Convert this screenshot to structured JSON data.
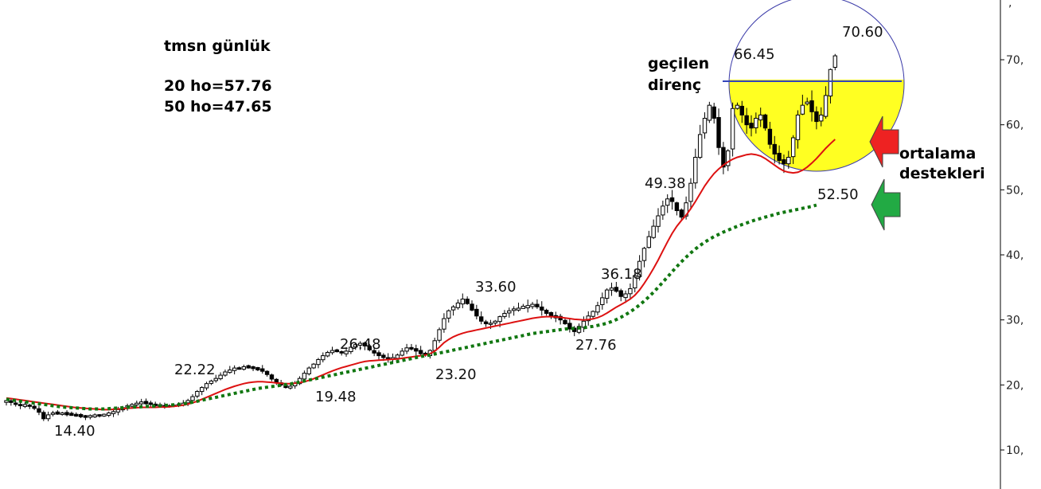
{
  "header": {
    "title": "tmsn günlük",
    "ma20": "20 ho=57.76",
    "ma50": "50 ho=47.65"
  },
  "notes": {
    "resistance": [
      "geçilen",
      "direnç"
    ],
    "support": [
      "ortalama",
      "destekleri"
    ]
  },
  "colors": {
    "ma20": "#dd1111",
    "ma50": "#117711",
    "resistance_line": "#3344bb",
    "circle_stroke": "#3a3aa8",
    "highlight_fill": "#ffff22",
    "arrow_red": "#ee2222",
    "arrow_green": "#22aa44",
    "candle_up": "#ffffff",
    "candle_down": "#000000",
    "axis_text": "#222222"
  },
  "chart_data": {
    "type": "candlestick",
    "title": "tmsn günlük",
    "ylim": [
      5,
      77
    ],
    "y_ticks": [
      10,
      20,
      30,
      40,
      50,
      60,
      70
    ],
    "y_tick_labels": [
      "10,",
      "20,",
      "30,",
      "40,",
      "50,",
      "60,",
      "70,"
    ],
    "axis_position": "right",
    "grid": false,
    "resistance_level": 66.7,
    "annotations": [
      {
        "text": "14.40",
        "x": 15,
        "y": 14.4
      },
      {
        "text": "22.22",
        "x": 55,
        "y": 22.22
      },
      {
        "text": "19.48",
        "x": 103,
        "y": 19.48
      },
      {
        "text": "26.48",
        "x": 113,
        "y": 26.48
      },
      {
        "text": "23.20",
        "x": 142,
        "y": 23.2
      },
      {
        "text": "33.60",
        "x": 155,
        "y": 33.6
      },
      {
        "text": "27.76",
        "x": 187,
        "y": 27.76
      },
      {
        "text": "36.18",
        "x": 195,
        "y": 36.18
      },
      {
        "text": "49.38",
        "x": 227,
        "y": 49.38
      },
      {
        "text": "66.45",
        "x": 237,
        "y": 66.45
      },
      {
        "text": "70.60",
        "x": 270,
        "y": 70.6
      },
      {
        "text": "52.50",
        "x": 264,
        "y": 52.5
      }
    ],
    "candles": {
      "close": [
        17.5,
        17.3,
        17.0,
        16.8,
        16.9,
        16.7,
        16.4,
        15.8,
        14.8,
        15.4,
        15.7,
        15.6,
        15.6,
        15.5,
        15.4,
        15.3,
        15.2,
        15.1,
        15.2,
        15.3,
        15.3,
        15.4,
        15.6,
        15.9,
        16.2,
        16.5,
        16.8,
        17.0,
        17.2,
        17.3,
        17.2,
        17.0,
        16.9,
        16.8,
        16.7,
        16.7,
        16.8,
        16.9,
        17.2,
        17.6,
        18.2,
        19.0,
        19.6,
        20.2,
        20.6,
        21.0,
        21.5,
        22.0,
        22.3,
        22.6,
        22.5,
        22.8,
        22.7,
        22.6,
        22.4,
        22.1,
        21.6,
        20.9,
        20.4,
        20.0,
        19.6,
        19.8,
        20.3,
        21.0,
        21.8,
        22.6,
        23.2,
        23.9,
        24.5,
        25.0,
        25.3,
        25.2,
        24.9,
        25.2,
        25.8,
        26.2,
        26.4,
        26.0,
        25.4,
        24.9,
        24.5,
        24.3,
        24.0,
        24.2,
        24.6,
        25.2,
        25.7,
        25.6,
        25.2,
        24.8,
        24.6,
        25.3,
        26.8,
        28.5,
        30.2,
        31.4,
        32.0,
        32.6,
        33.2,
        32.5,
        31.5,
        30.6,
        29.8,
        29.4,
        29.4,
        29.8,
        30.5,
        31.0,
        31.4,
        31.6,
        31.8,
        32.0,
        32.2,
        32.4,
        32.0,
        31.5,
        31.0,
        30.6,
        30.4,
        30.0,
        29.4,
        28.6,
        28.2,
        29.0,
        29.8,
        30.6,
        31.3,
        32.2,
        33.4,
        34.6,
        34.9,
        34.4,
        33.6,
        34.0,
        34.8,
        36.8,
        39.0,
        41.0,
        42.8,
        44.4,
        46.0,
        47.5,
        48.6,
        48.2,
        46.8,
        45.8,
        48.0,
        51.0,
        55.0,
        58.5,
        61.0,
        63.0,
        61.0,
        56.5,
        53.5,
        56.0,
        62.5,
        63.0,
        61.5,
        60.0,
        59.5,
        61.0,
        61.5,
        59.5,
        57.0,
        55.5,
        54.5,
        54.0,
        55.0,
        58.0,
        61.5,
        63.0,
        63.5,
        62.0,
        60.5,
        61.5,
        64.5,
        68.5,
        70.6
      ],
      "volatility": 0.012
    },
    "series": [
      {
        "name": "20 ho",
        "style": "solid",
        "color": "#dd1111",
        "values": [
          18.0,
          17.9,
          17.8,
          17.7,
          17.6,
          17.5,
          17.4,
          17.3,
          17.2,
          17.1,
          17.0,
          16.9,
          16.8,
          16.7,
          16.6,
          16.5,
          16.45,
          16.4,
          16.35,
          16.3,
          16.25,
          16.2,
          16.2,
          16.25,
          16.3,
          16.35,
          16.4,
          16.45,
          16.5,
          16.55,
          16.55,
          16.55,
          16.55,
          16.6,
          16.6,
          16.65,
          16.7,
          16.8,
          16.9,
          17.05,
          17.25,
          17.5,
          17.8,
          18.1,
          18.4,
          18.7,
          19.0,
          19.3,
          19.55,
          19.8,
          20.0,
          20.2,
          20.35,
          20.45,
          20.5,
          20.5,
          20.45,
          20.4,
          20.3,
          20.25,
          20.2,
          20.2,
          20.25,
          20.35,
          20.5,
          20.7,
          20.95,
          21.25,
          21.55,
          21.85,
          22.15,
          22.4,
          22.65,
          22.85,
          23.05,
          23.25,
          23.45,
          23.6,
          23.7,
          23.75,
          23.8,
          23.85,
          23.9,
          23.95,
          24.0,
          24.1,
          24.2,
          24.3,
          24.4,
          24.5,
          24.6,
          24.8,
          25.2,
          25.8,
          26.5,
          27.0,
          27.4,
          27.7,
          27.95,
          28.15,
          28.3,
          28.45,
          28.6,
          28.75,
          28.9,
          29.05,
          29.2,
          29.35,
          29.5,
          29.65,
          29.8,
          29.95,
          30.1,
          30.25,
          30.35,
          30.45,
          30.5,
          30.5,
          30.45,
          30.4,
          30.3,
          30.2,
          30.1,
          30.05,
          30.0,
          30.05,
          30.15,
          30.35,
          30.65,
          31.05,
          31.5,
          31.95,
          32.35,
          32.75,
          33.2,
          33.8,
          34.6,
          35.6,
          36.7,
          37.9,
          39.2,
          40.6,
          42.0,
          43.3,
          44.4,
          45.3,
          46.1,
          47.1,
          48.2,
          49.4,
          50.6,
          51.6,
          52.5,
          53.2,
          53.8,
          54.3,
          54.7,
          55.0,
          55.2,
          55.4,
          55.5,
          55.4,
          55.2,
          54.8,
          54.3,
          53.8,
          53.3,
          52.9,
          52.7,
          52.6,
          52.7,
          53.0,
          53.5,
          54.1,
          54.8,
          55.6,
          56.4,
          57.1,
          57.76
        ]
      },
      {
        "name": "50 ho",
        "style": "dotted",
        "color": "#117711",
        "values": [
          17.8,
          17.7,
          17.6,
          17.5,
          17.4,
          17.3,
          17.2,
          17.1,
          17.0,
          16.9,
          16.8,
          16.7,
          16.6,
          16.55,
          16.5,
          16.45,
          16.4,
          16.35,
          16.3,
          16.3,
          16.3,
          16.3,
          16.35,
          16.4,
          16.45,
          16.5,
          16.55,
          16.6,
          16.6,
          16.65,
          16.7,
          16.7,
          16.75,
          16.8,
          16.85,
          16.9,
          16.95,
          17.0,
          17.1,
          17.2,
          17.35,
          17.5,
          17.65,
          17.8,
          17.95,
          18.1,
          18.25,
          18.4,
          18.55,
          18.7,
          18.85,
          19.0,
          19.15,
          19.3,
          19.45,
          19.55,
          19.65,
          19.75,
          19.85,
          19.95,
          20.05,
          20.15,
          20.3,
          20.45,
          20.6,
          20.75,
          20.9,
          21.05,
          21.2,
          21.35,
          21.5,
          21.65,
          21.8,
          21.95,
          22.1,
          22.25,
          22.4,
          22.55,
          22.7,
          22.85,
          23.0,
          23.15,
          23.3,
          23.45,
          23.6,
          23.75,
          23.9,
          24.05,
          24.2,
          24.35,
          24.5,
          24.6,
          24.75,
          24.9,
          25.05,
          25.2,
          25.35,
          25.5,
          25.65,
          25.8,
          25.95,
          26.1,
          26.25,
          26.4,
          26.55,
          26.7,
          26.85,
          27.0,
          27.15,
          27.3,
          27.45,
          27.6,
          27.75,
          27.9,
          28.0,
          28.1,
          28.2,
          28.3,
          28.4,
          28.5,
          28.6,
          28.65,
          28.7,
          28.75,
          28.8,
          28.9,
          29.0,
          29.15,
          29.3,
          29.5,
          29.75,
          30.05,
          30.4,
          30.8,
          31.25,
          31.75,
          32.3,
          32.9,
          33.55,
          34.25,
          35.0,
          35.8,
          36.6,
          37.4,
          38.2,
          38.95,
          39.65,
          40.3,
          40.9,
          41.45,
          41.95,
          42.4,
          42.8,
          43.15,
          43.5,
          43.8,
          44.1,
          44.4,
          44.65,
          44.9,
          45.15,
          45.4,
          45.6,
          45.8,
          46.0,
          46.2,
          46.4,
          46.55,
          46.7,
          46.85,
          47.0,
          47.15,
          47.3,
          47.45,
          47.65
        ]
      }
    ]
  }
}
